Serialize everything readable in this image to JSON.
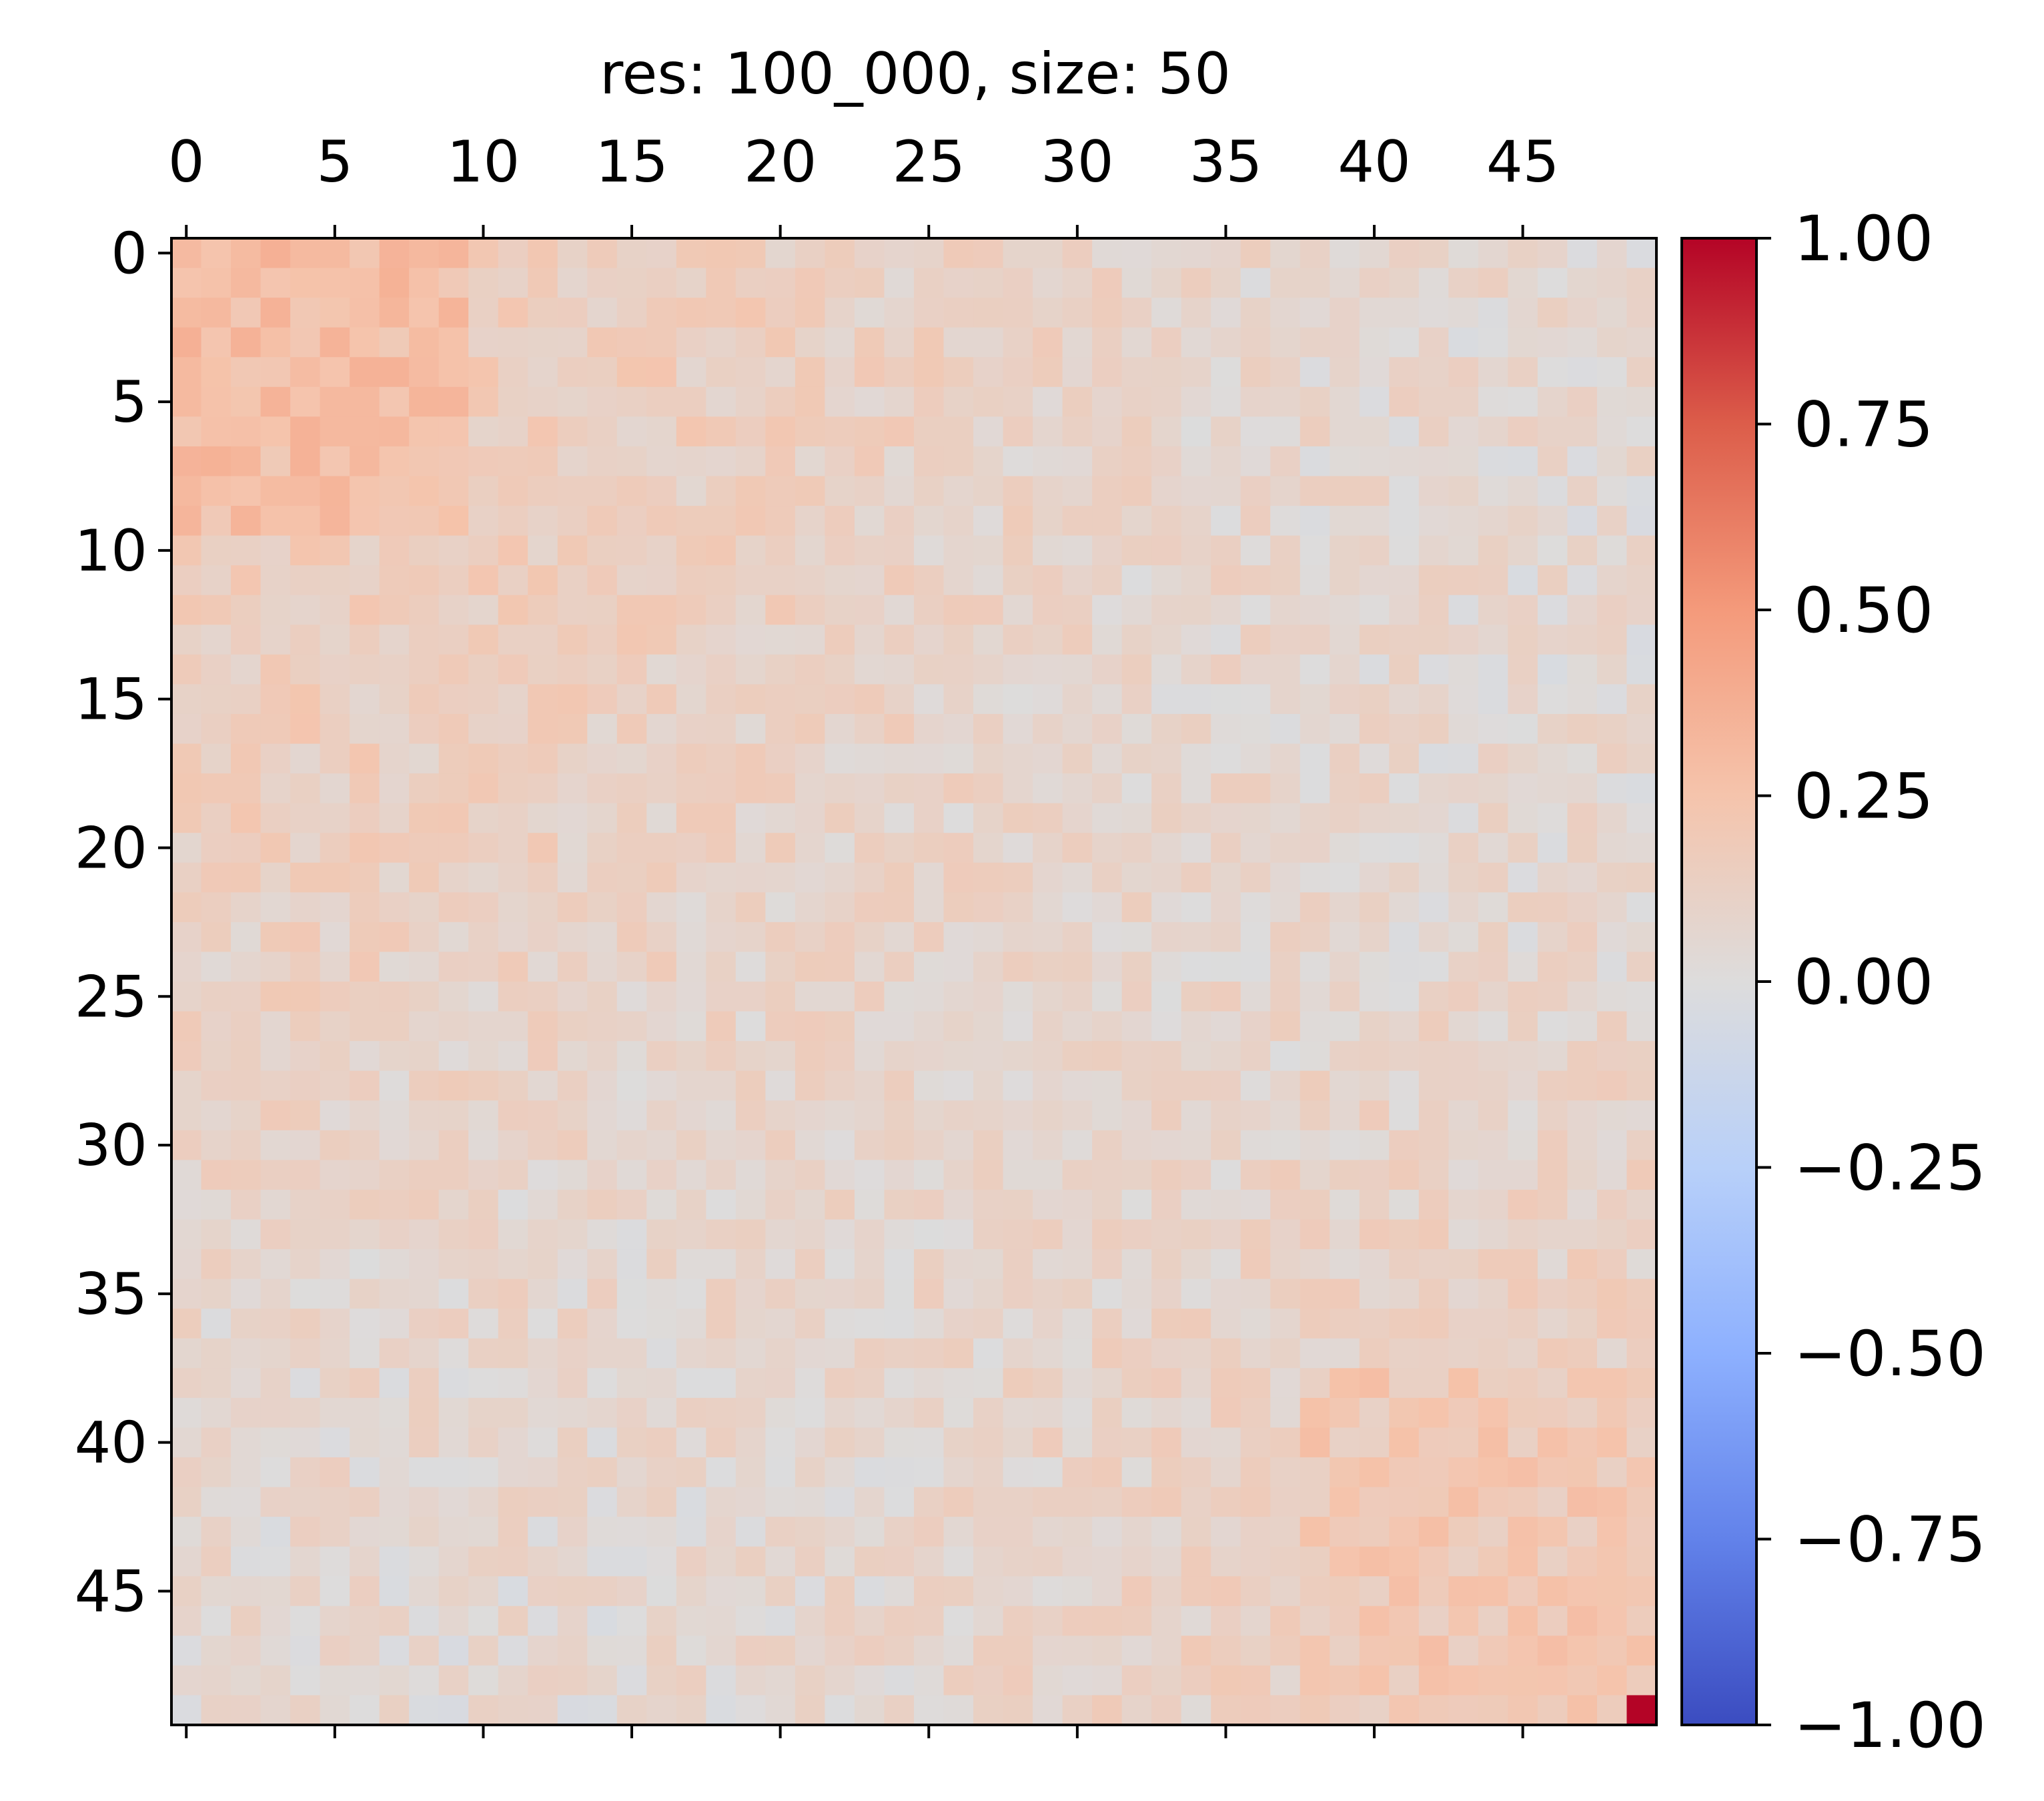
{
  "chart_data": {
    "type": "heatmap",
    "title": "res: 100_000, size: 50",
    "xlabel": "",
    "ylabel": "",
    "size": 50,
    "x_ticks": [
      0,
      5,
      10,
      15,
      20,
      25,
      30,
      35,
      40,
      45
    ],
    "y_ticks": [
      0,
      5,
      10,
      15,
      20,
      25,
      30,
      35,
      40,
      45
    ],
    "colormap": "coolwarm",
    "vmin": -1.0,
    "vmax": 1.0,
    "colorbar_ticks": [
      1.0,
      0.75,
      0.5,
      0.25,
      0.0,
      -0.25,
      -0.5,
      -0.75,
      -1.0
    ],
    "colorbar_tick_labels": [
      "1.00",
      "0.75",
      "0.50",
      "0.25",
      "0.00",
      "−0.25",
      "−0.50",
      "−0.75",
      "−1.00"
    ],
    "colorbar_colors": [
      "#3b4cc0",
      "#6282ea",
      "#8db0fe",
      "#b8d0f9",
      "#dddcdc",
      "#f5c4ac",
      "#f49a7b",
      "#dc5d4a",
      "#b40426"
    ],
    "structure": {
      "top_left_block_rows": [
        0,
        9
      ],
      "top_left_block_cols": [
        0,
        9
      ],
      "top_left_block_mean": 0.28,
      "bottom_right_block_rows": [
        38,
        49
      ],
      "bottom_right_block_cols": [
        38,
        49
      ],
      "bottom_right_block_mean": 0.2,
      "background_mean": 0.04,
      "noise_amplitude": 0.09,
      "cell_49_49": 1.0
    }
  }
}
